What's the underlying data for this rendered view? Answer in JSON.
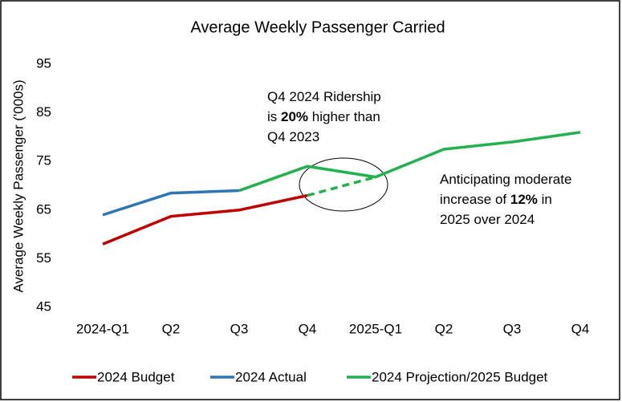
{
  "chart_data": {
    "type": "line",
    "title": "Average Weekly Passenger Carried",
    "y_label": "Average Weekly Passenger ('000s)",
    "categories": [
      "2024-Q1",
      "Q2",
      "Q3",
      "Q4",
      "2025-Q1",
      "Q2",
      "Q3",
      "Q4"
    ],
    "ylim": [
      45,
      95
    ],
    "yticks": [
      45,
      55,
      65,
      75,
      85,
      95
    ],
    "grid": false,
    "legend": "bottom",
    "series": [
      {
        "name": "2024 Budget",
        "color": "#c00000",
        "values": [
          58,
          63.7,
          65,
          68,
          null,
          null,
          null,
          null
        ]
      },
      {
        "name": "2024 Actual",
        "color": "#2e75b6",
        "values": [
          64,
          68.5,
          69,
          null,
          null,
          null,
          null,
          null
        ]
      },
      {
        "name": "2024 Projection/2025 Budget",
        "color": "#22b14c",
        "values": [
          null,
          null,
          69,
          74,
          71.8,
          77.5,
          79,
          81
        ]
      },
      {
        "color": "#22b14c",
        "dashed": true,
        "values": [
          null,
          null,
          null,
          68,
          71.8,
          null,
          null,
          null
        ]
      }
    ],
    "annotations": [
      {
        "lines": [
          [
            {
              "text": "Q4 2024 Ridership"
            }
          ],
          [
            {
              "text": "is "
            },
            {
              "text": "20%",
              "bold": true
            },
            {
              "text": " higher than"
            }
          ],
          [
            {
              "text": "Q4 2023"
            }
          ]
        ]
      },
      {
        "lines": [
          [
            {
              "text": "Anticipating moderate"
            }
          ],
          [
            {
              "text": "increase of "
            },
            {
              "text": "12%",
              "bold": true
            },
            {
              "text": " in"
            }
          ],
          [
            {
              "text": "2025 over 2024"
            }
          ]
        ]
      }
    ]
  }
}
